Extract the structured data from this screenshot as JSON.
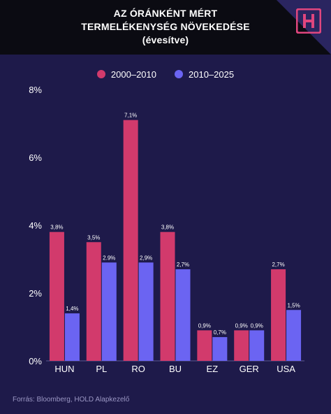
{
  "header": {
    "title_lines": [
      "AZ ÓRÁNKÉNT MÉRT",
      "TERMELÉKENYSÉG NÖVEKEDÉSE",
      "(évesítve)"
    ],
    "logo_icon": "h-logo-icon"
  },
  "legend": [
    {
      "name": "2000–2010",
      "color": "#d23a6c"
    },
    {
      "name": "2010–2025",
      "color": "#6b64f2"
    }
  ],
  "footer": {
    "source": "Forrás: Bloomberg, HOLD Alapkezelő"
  },
  "chart_data": {
    "type": "bar",
    "categories": [
      "HUN",
      "PL",
      "RO",
      "BU",
      "EZ",
      "GER",
      "USA"
    ],
    "series": [
      {
        "name": "2000–2010",
        "values": [
          3.8,
          3.5,
          7.1,
          3.8,
          0.9,
          0.9,
          2.7
        ],
        "labels": [
          "3,8%",
          "3,5%",
          "7,1%",
          "3,8%",
          "0,9%",
          "0,9%",
          "2,7%"
        ],
        "color": "#d23a6c"
      },
      {
        "name": "2010–2025",
        "values": [
          1.4,
          2.9,
          2.9,
          2.7,
          0.7,
          0.9,
          1.5
        ],
        "labels": [
          "1,4%",
          "2.9%",
          "2,9%",
          "2,7%",
          "0,7%",
          "0,9%",
          "1,5%"
        ],
        "color": "#6b64f2"
      }
    ],
    "ylim": [
      0,
      8
    ],
    "yticks": [
      0,
      2,
      4,
      6,
      8
    ],
    "ytick_labels": [
      "0%",
      "2%",
      "4%",
      "6%",
      "8%"
    ],
    "grid": false,
    "legend_position": "top"
  }
}
